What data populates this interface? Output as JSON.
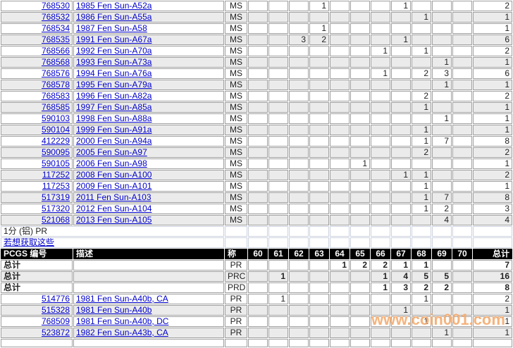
{
  "colors": {
    "link": "#0000cc",
    "watermark": "#f5ab6e",
    "header_bg": "#000000",
    "stripe": "#ebebeb"
  },
  "watermark": {
    "text": "www.coin001.com"
  },
  "section": {
    "title": "1分 (铝) PR",
    "link_label": "若想获取这些"
  },
  "columns": {
    "pcgs": "PCGS 编号",
    "desc": "描述",
    "desig": "称",
    "grades": [
      "60",
      "61",
      "62",
      "63",
      "64",
      "65",
      "66",
      "67",
      "68",
      "69",
      "70"
    ],
    "total": "总计"
  },
  "ms_table": {
    "rows": [
      {
        "pcgs": "768530",
        "desc": "1985 Fen Sun-A52a",
        "desig": "MS",
        "grades": {
          "63": "1",
          "67": "1"
        },
        "total": "2"
      },
      {
        "pcgs": "768532",
        "desc": "1986 Fen Sun-A55a",
        "desig": "MS",
        "grades": {
          "68": "1"
        },
        "total": "1"
      },
      {
        "pcgs": "768534",
        "desc": "1987 Fen Sun-A58",
        "desig": "MS",
        "grades": {
          "63": "1"
        },
        "total": "1"
      },
      {
        "pcgs": "768535",
        "desc": "1991 Fen Sun-A67a",
        "desig": "MS",
        "grades": {
          "62": "3",
          "63": "2",
          "67": "1"
        },
        "total": "6"
      },
      {
        "pcgs": "768566",
        "desc": "1992 Fen Sun-A70a",
        "desig": "MS",
        "grades": {
          "66": "1",
          "68": "1"
        },
        "total": "2"
      },
      {
        "pcgs": "768568",
        "desc": "1993 Fen Sun-A73a",
        "desig": "MS",
        "grades": {
          "69": "1"
        },
        "total": "1"
      },
      {
        "pcgs": "768576",
        "desc": "1994 Fen Sun-A76a",
        "desig": "MS",
        "grades": {
          "66": "1",
          "68": "2",
          "69": "3"
        },
        "total": "6"
      },
      {
        "pcgs": "768578",
        "desc": "1995 Fen Sun-A79a",
        "desig": "MS",
        "grades": {
          "69": "1"
        },
        "total": "1"
      },
      {
        "pcgs": "768583",
        "desc": "1996 Fen Sun-A82a",
        "desig": "MS",
        "grades": {
          "68": "2"
        },
        "total": "2"
      },
      {
        "pcgs": "768585",
        "desc": "1997 Fen Sun-A85a",
        "desig": "MS",
        "grades": {
          "68": "1"
        },
        "total": "1"
      },
      {
        "pcgs": "590103",
        "desc": "1998 Fen Sun-A88a",
        "desig": "MS",
        "grades": {
          "69": "1"
        },
        "total": "1"
      },
      {
        "pcgs": "590104",
        "desc": "1999 Fen Sun-A91a",
        "desig": "MS",
        "grades": {
          "68": "1"
        },
        "total": "1"
      },
      {
        "pcgs": "412229",
        "desc": "2000 Fen Sun-A94a",
        "desig": "MS",
        "grades": {
          "68": "1",
          "69": "7"
        },
        "total": "8"
      },
      {
        "pcgs": "590095",
        "desc": "2005 Fen Sun-A97",
        "desig": "MS",
        "grades": {
          "68": "2"
        },
        "total": "2"
      },
      {
        "pcgs": "590105",
        "desc": "2006 Fen Sun-A98",
        "desig": "MS",
        "grades": {
          "65": "1"
        },
        "total": "1"
      },
      {
        "pcgs": "117252",
        "desc": "2008 Fen Sun-A100",
        "desig": "MS",
        "grades": {
          "67": "1",
          "68": "1"
        },
        "total": "2"
      },
      {
        "pcgs": "117253",
        "desc": "2009 Fen Sun-A101",
        "desig": "MS",
        "grades": {
          "68": "1"
        },
        "total": "1"
      },
      {
        "pcgs": "517319",
        "desc": "2011 Fen Sun-A103",
        "desig": "MS",
        "grades": {
          "68": "1",
          "69": "7"
        },
        "total": "8"
      },
      {
        "pcgs": "517320",
        "desc": "2012 Fen Sun-A104",
        "desig": "MS",
        "grades": {
          "68": "1",
          "69": "2"
        },
        "total": "3"
      },
      {
        "pcgs": "521068",
        "desc": "2013 Fen Sun-A105",
        "desig": "MS",
        "grades": {
          "69": "4"
        },
        "total": "4"
      }
    ]
  },
  "pr_table": {
    "summary_label": "总计",
    "summary_rows": [
      {
        "label": "总计",
        "desig": "PR",
        "grades": {
          "64": "1",
          "65": "2",
          "66": "2",
          "67": "1",
          "68": "1"
        },
        "total": "7"
      },
      {
        "label": "总计",
        "desig": "PRC",
        "grades": {
          "61": "1",
          "66": "1",
          "67": "4",
          "68": "5",
          "69": "5"
        },
        "total": "16"
      },
      {
        "label": "总计",
        "desig": "PRD",
        "grades": {
          "66": "1",
          "67": "3",
          "68": "2",
          "69": "2"
        },
        "total": "8"
      }
    ],
    "rows": [
      {
        "pcgs": "514776",
        "desc": "1981 Fen Sun-A40b, CA",
        "desig": "PR",
        "grades": {
          "61": "1",
          "68": "1"
        },
        "total": "2"
      },
      {
        "pcgs": "515328",
        "desc": "1981 Fen Sun-A40b",
        "desig": "PR",
        "grades": {
          "67": "1"
        },
        "total": "1"
      },
      {
        "pcgs": "768509",
        "desc": "1981 Fen Sun-A40b, DC",
        "desig": "PR",
        "grades": {
          "68": "1"
        },
        "total": "1"
      },
      {
        "pcgs": "523872",
        "desc": "1982 Fen Sun-A43b, CA",
        "desig": "PR",
        "grades": {
          "69": "1"
        },
        "total": "1"
      }
    ]
  }
}
